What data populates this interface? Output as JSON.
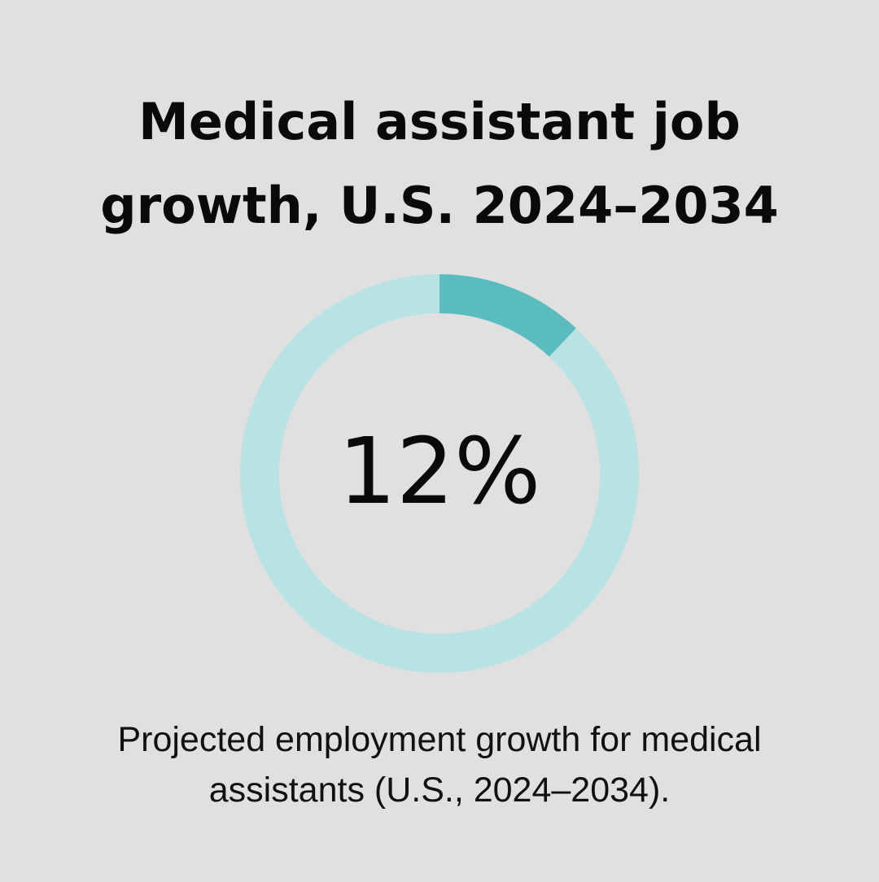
{
  "chart_data": {
    "type": "pie",
    "style": "donut",
    "title_lines": [
      "Medical assistant job",
      "growth, U.S. 2024–2034"
    ],
    "value": 12,
    "max": 100,
    "center_label": "12%",
    "caption_lines": [
      "Projected employment growth for medical",
      "assistants (U.S., 2024–2034)."
    ],
    "colors": {
      "filled": "#5bbcc0",
      "remainder": "#b9e2e4",
      "background": "#dfe0df"
    }
  }
}
